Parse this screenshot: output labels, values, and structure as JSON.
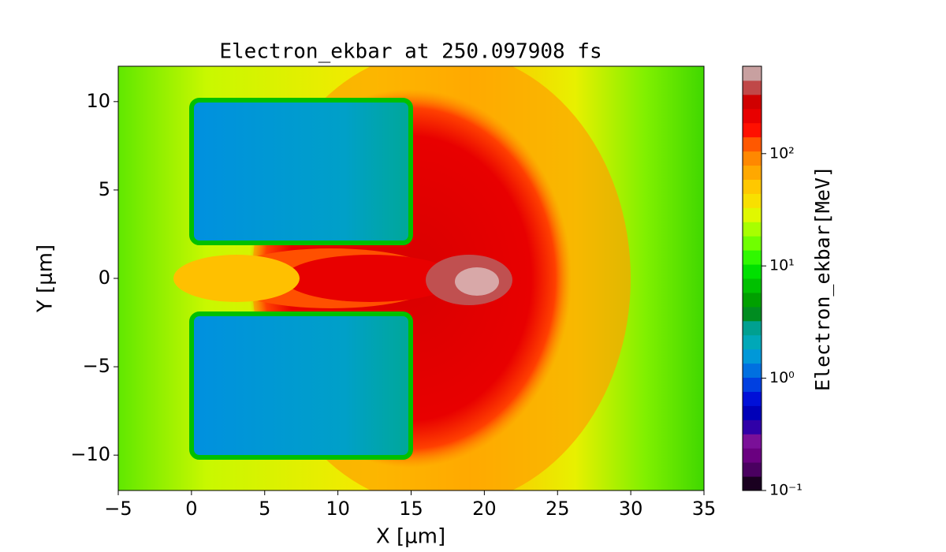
{
  "chart_data": {
    "type": "contour",
    "title": "Electron_ekbar at 250.097908 fs",
    "xlabel": "X  [μm]",
    "ylabel": "Y  [μm]",
    "colorbar_label": "Electron_ekbar[MeV]",
    "xlim": [
      -5,
      35
    ],
    "ylim": [
      -12,
      12
    ],
    "xticks": [
      {
        "value": -5,
        "label": "−5"
      },
      0,
      5,
      10,
      15,
      20,
      25,
      30,
      35
    ],
    "yticks": [
      {
        "value": -10,
        "label": "−10"
      },
      {
        "value": -5,
        "label": "−5"
      },
      0,
      5,
      10
    ],
    "clim": [
      0.1,
      600
    ],
    "colorbar_log": true,
    "cticks": [
      {
        "value": 0.1,
        "label": "10⁻¹"
      },
      {
        "value": 1,
        "label": "10⁰"
      },
      {
        "value": 10,
        "label": "10¹"
      },
      {
        "value": 100,
        "label": "10²"
      }
    ],
    "colors": [
      "#1a0020",
      "#4a0060",
      "#6a0080",
      "#7a1098",
      "#3000a8",
      "#0000b8",
      "#0010d8",
      "#0040e0",
      "#0070e0",
      "#0098d8",
      "#00a8b8",
      "#00a090",
      "#008c20",
      "#00a000",
      "#00c000",
      "#00e000",
      "#30f800",
      "#70ff00",
      "#a8ff00",
      "#e0f800",
      "#f8e000",
      "#ffc800",
      "#ffa800",
      "#ff8800",
      "#ff5800",
      "#ff1000",
      "#e80000",
      "#d00000",
      "#c04848",
      "#c8a0a0"
    ]
  }
}
